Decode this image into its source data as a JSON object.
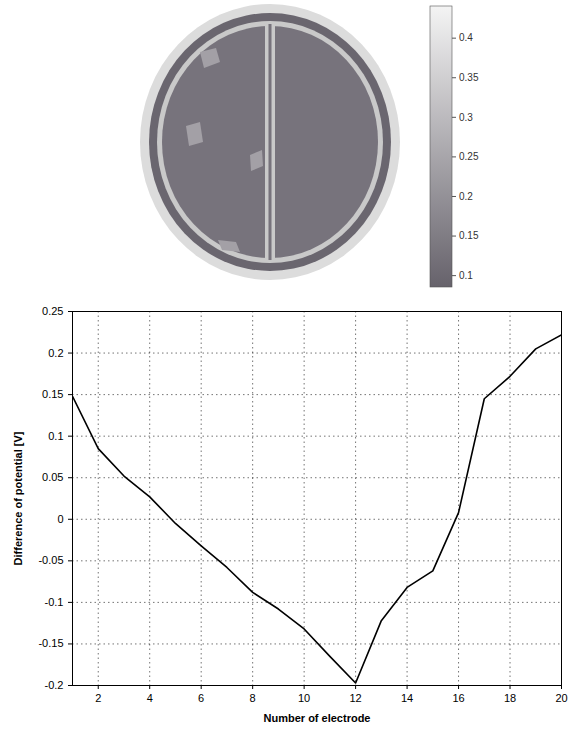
{
  "chart_data": [
    {
      "type": "image",
      "colorbar": {
        "range": [
          0.085,
          0.44
        ],
        "ticks": [
          0.1,
          0.15,
          0.2,
          0.25,
          0.3,
          0.35,
          0.4
        ]
      }
    },
    {
      "type": "line",
      "x": [
        1,
        2,
        3,
        4,
        5,
        6,
        7,
        8,
        9,
        10,
        11,
        12,
        13,
        14,
        15,
        16,
        17,
        18,
        19,
        20
      ],
      "values": [
        0.148,
        0.085,
        0.052,
        0.027,
        -0.005,
        -0.032,
        -0.058,
        -0.088,
        -0.108,
        -0.132,
        -0.165,
        -0.197,
        -0.122,
        -0.082,
        -0.062,
        0.008,
        0.145,
        0.172,
        0.205,
        0.222
      ],
      "color": "#000000",
      "xlabel": "Number of electrode",
      "ylabel": "Difference of potential [V]",
      "xlim": [
        1,
        20
      ],
      "xticks": [
        2,
        4,
        6,
        8,
        10,
        12,
        14,
        16,
        18,
        20
      ],
      "ylim": [
        -0.2,
        0.25
      ],
      "yticks": [
        -0.2,
        -0.15,
        -0.1,
        -0.05,
        0,
        0.05,
        0.1,
        0.15,
        0.2,
        0.25
      ],
      "grid": true
    }
  ]
}
